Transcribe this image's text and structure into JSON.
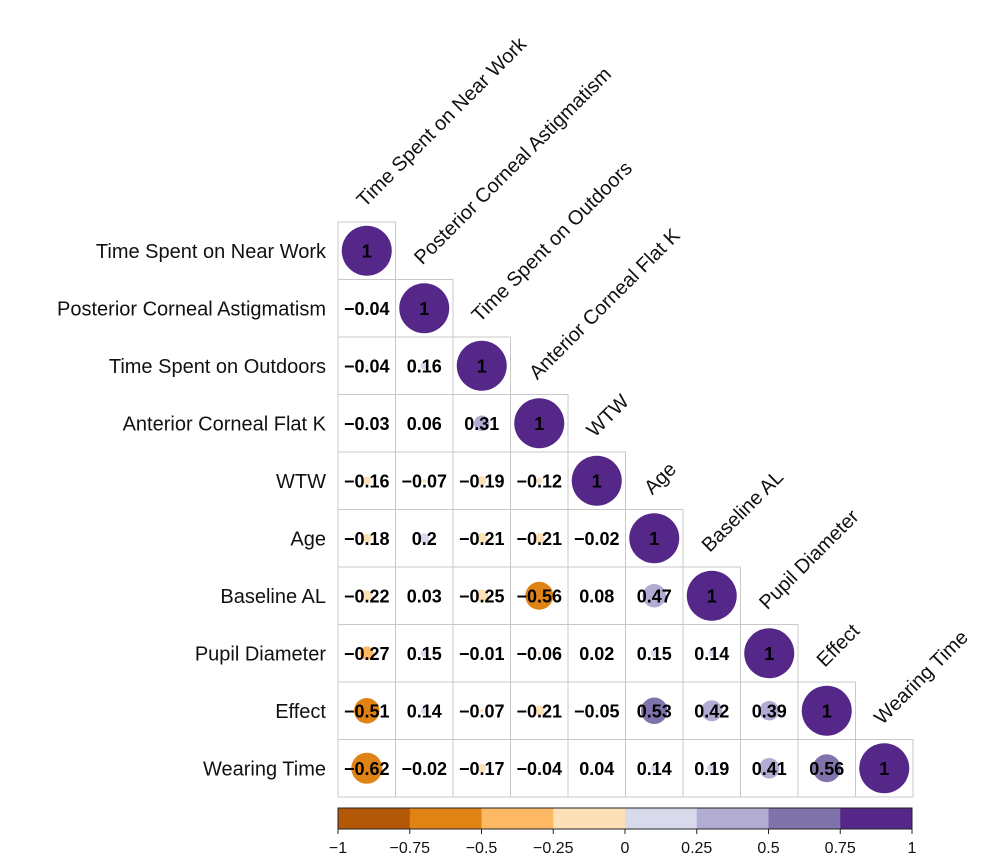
{
  "chart_data": {
    "type": "heatmap",
    "variables": [
      "Time Spent on Near Work",
      "Posterior Corneal Astigmatism",
      "Time Spent on Outdoors",
      "Anterior Corneal Flat K",
      "WTW",
      "Age",
      "Baseline AL",
      "Pupil Diameter",
      "Effect",
      "Wearing Time"
    ],
    "values": [
      [
        1
      ],
      [
        -0.04,
        1
      ],
      [
        -0.04,
        0.16,
        1
      ],
      [
        -0.03,
        0.06,
        0.31,
        1
      ],
      [
        -0.16,
        -0.07,
        -0.19,
        -0.12,
        1
      ],
      [
        -0.18,
        0.2,
        -0.21,
        -0.21,
        -0.02,
        1
      ],
      [
        -0.22,
        0.03,
        -0.25,
        -0.56,
        0.08,
        0.47,
        1
      ],
      [
        -0.27,
        0.15,
        -0.01,
        -0.06,
        0.02,
        0.15,
        0.14,
        1
      ],
      [
        -0.51,
        0.14,
        -0.07,
        -0.21,
        -0.05,
        0.53,
        0.42,
        0.39,
        1
      ],
      [
        -0.62,
        -0.02,
        -0.17,
        -0.04,
        0.04,
        0.14,
        0.19,
        0.41,
        0.56,
        1
      ]
    ],
    "value_labels": [
      [
        "1"
      ],
      [
        "−0.04",
        "1"
      ],
      [
        "−0.04",
        "0.16",
        "1"
      ],
      [
        "−0.03",
        "0.06",
        "0.31",
        "1"
      ],
      [
        "−0.16",
        "−0.07",
        "−0.19",
        "−0.12",
        "1"
      ],
      [
        "−0.18",
        "0.2",
        "−0.21",
        "−0.21",
        "−0.02",
        "1"
      ],
      [
        "−0.22",
        "0.03",
        "−0.25",
        "−0.56",
        "0.08",
        "0.47",
        "1"
      ],
      [
        "−0.27",
        "0.15",
        "−0.01",
        "−0.06",
        "0.02",
        "0.15",
        "0.14",
        "1"
      ],
      [
        "−0.51",
        "0.14",
        "−0.07",
        "−0.21",
        "−0.05",
        "0.53",
        "0.42",
        "0.39",
        "1"
      ],
      [
        "−0.62",
        "−0.02",
        "−0.17",
        "−0.04",
        "0.04",
        "0.14",
        "0.19",
        "0.41",
        "0.56",
        "1"
      ]
    ],
    "colorbar": {
      "range": [
        -1,
        1
      ],
      "ticks": [
        "−1",
        "−0.75",
        "−0.5",
        "−0.25",
        "0",
        "0.25",
        "0.5",
        "0.75",
        "1"
      ],
      "colors": [
        "#b35806",
        "#e08214",
        "#fdb863",
        "#fee0b6",
        "#d8daeb",
        "#b2abd2",
        "#8073ac",
        "#542788"
      ],
      "placement": "bottom"
    },
    "shape": "lower-triangle",
    "grid": true
  }
}
